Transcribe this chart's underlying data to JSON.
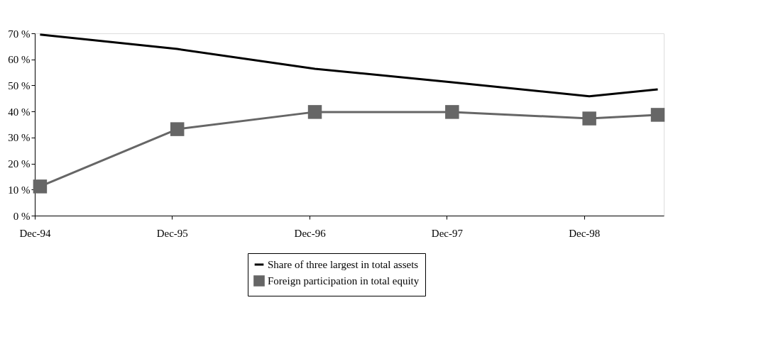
{
  "chart_data": {
    "type": "line",
    "x": [
      "1994-12-15",
      "1995-12-15",
      "1996-12-15",
      "1997-12-15",
      "1998-12-15",
      "1999-06-15"
    ],
    "series": [
      {
        "name": "Share of three largest in total assets",
        "color": "#000000",
        "marker": "none",
        "values": [
          69.5,
          64,
          56.4,
          51.2,
          45.8,
          48.5
        ]
      },
      {
        "name": "Foreign participation in total equity",
        "color": "#666666",
        "marker": "square",
        "values": [
          11.2,
          33.2,
          39.8,
          39.8,
          37.3,
          38.7
        ]
      }
    ],
    "xlim": [
      "1994-12-01",
      "1999-07-01"
    ],
    "xticks": [
      {
        "value": "1994-12-01",
        "label": "Dec-94"
      },
      {
        "value": "1995-12-01",
        "label": "Dec-95"
      },
      {
        "value": "1996-12-01",
        "label": "Dec-96"
      },
      {
        "value": "1997-12-01",
        "label": "Dec-97"
      },
      {
        "value": "1998-12-01",
        "label": "Dec-98"
      }
    ],
    "ylim": [
      0,
      70
    ],
    "yticks": [
      {
        "value": 0,
        "label": "0 %"
      },
      {
        "value": 10,
        "label": "10 %"
      },
      {
        "value": 20,
        "label": "20 %"
      },
      {
        "value": 30,
        "label": "30 %"
      },
      {
        "value": 40,
        "label": "40 %"
      },
      {
        "value": 50,
        "label": "50 %"
      },
      {
        "value": 60,
        "label": "60 %"
      },
      {
        "value": 70,
        "label": "70 %"
      }
    ],
    "grid": false,
    "legend": "bottom",
    "line_style": "solid"
  }
}
